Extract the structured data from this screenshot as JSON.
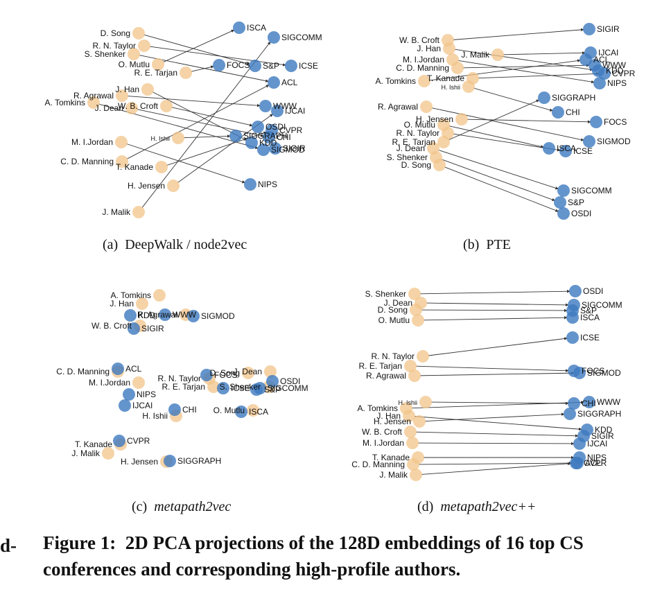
{
  "figure": {
    "margin_fragment": "d-",
    "caption_prefix": "Figure 1:",
    "caption_text": "2D PCA projections of the 128D embeddings of 16 top CS conferences and corresponding high-profile authors.",
    "colors": {
      "author": "#f2c48a",
      "conference": "#3d79bf",
      "overlap": "#1a2f8c",
      "edge": "#333333"
    }
  },
  "panels": [
    {
      "id": "a",
      "caption_label": "(a)",
      "caption_method": "DeepWalk / node2vec",
      "method_italic": false,
      "authors": [
        {
          "label": "D. Song",
          "x": 150,
          "y": 40
        },
        {
          "label": "R. N. Taylor",
          "x": 158,
          "y": 58
        },
        {
          "label": "S. Shenker",
          "x": 143,
          "y": 70
        },
        {
          "label": "O. Mutlu",
          "x": 178,
          "y": 85
        },
        {
          "label": "R. E. Tarjan",
          "x": 218,
          "y": 97
        },
        {
          "label": "J. Han",
          "x": 163,
          "y": 121
        },
        {
          "label": "R. Agrawal",
          "x": 126,
          "y": 130
        },
        {
          "label": "A. Tomkins",
          "x": 85,
          "y": 140
        },
        {
          "label": "J. Dean",
          "x": 140,
          "y": 148
        },
        {
          "label": "W. B. Croft",
          "x": 190,
          "y": 145
        },
        {
          "label": "H. Ishii",
          "x": 207,
          "y": 191,
          "small": true
        },
        {
          "label": "M. I.Jordan",
          "x": 125,
          "y": 197
        },
        {
          "label": "C. D. Manning",
          "x": 126,
          "y": 225
        },
        {
          "label": "T. Kanade",
          "x": 183,
          "y": 233
        },
        {
          "label": "H. Jensen",
          "x": 200,
          "y": 260
        },
        {
          "label": "J. Malik",
          "x": 150,
          "y": 298
        }
      ],
      "conferences": [
        {
          "label": "ISCA",
          "x": 295,
          "y": 32
        },
        {
          "label": "SIGCOMM",
          "x": 345,
          "y": 46
        },
        {
          "label": "FOCS",
          "x": 266,
          "y": 86
        },
        {
          "label": "S&P",
          "x": 318,
          "y": 87
        },
        {
          "label": "ICSE",
          "x": 370,
          "y": 87
        },
        {
          "label": "ACL",
          "x": 345,
          "y": 111
        },
        {
          "label": "WWW",
          "x": 333,
          "y": 145
        },
        {
          "label": "IJCAI",
          "x": 350,
          "y": 152
        },
        {
          "label": "OSDI",
          "x": 322,
          "y": 175
        },
        {
          "label": "CVPR",
          "x": 342,
          "y": 180
        },
        {
          "label": "SIGGRAPH",
          "x": 290,
          "y": 188
        },
        {
          "label": "CHI",
          "x": 338,
          "y": 190
        },
        {
          "label": "KDD",
          "x": 313,
          "y": 198
        },
        {
          "label": "SIGMOD",
          "x": 330,
          "y": 208
        },
        {
          "label": "SIGIR",
          "x": 347,
          "y": 206
        },
        {
          "label": "NIPS",
          "x": 311,
          "y": 258
        }
      ],
      "edges": [
        [
          0,
          3
        ],
        [
          1,
          4
        ],
        [
          2,
          5
        ],
        [
          3,
          0
        ],
        [
          4,
          2
        ],
        [
          5,
          12
        ],
        [
          6,
          6
        ],
        [
          7,
          13
        ],
        [
          8,
          11
        ],
        [
          9,
          8
        ],
        [
          10,
          10
        ],
        [
          11,
          15
        ],
        [
          12,
          5
        ],
        [
          13,
          9
        ],
        [
          14,
          7
        ],
        [
          15,
          1
        ]
      ]
    },
    {
      "id": "b",
      "caption_label": "(b)",
      "caption_method": "PTE",
      "method_italic": false,
      "authors": [
        {
          "label": "W. B. Croft",
          "x": 146,
          "y": 50
        },
        {
          "label": "J. Han",
          "x": 148,
          "y": 62
        },
        {
          "label": "J. Malik",
          "x": 218,
          "y": 71
        },
        {
          "label": "M. I.Jordan",
          "x": 153,
          "y": 78
        },
        {
          "label": "C. D. Manning",
          "x": 160,
          "y": 90
        },
        {
          "label": "A. Tomkins",
          "x": 112,
          "y": 109
        },
        {
          "label": "T. Kanade",
          "x": 182,
          "y": 105
        },
        {
          "label": "H. Ishii",
          "x": 176,
          "y": 117,
          "small": true
        },
        {
          "label": "R. Agrawal",
          "x": 115,
          "y": 146
        },
        {
          "label": "H. Jensen",
          "x": 166,
          "y": 164
        },
        {
          "label": "O. Mutlu",
          "x": 140,
          "y": 172
        },
        {
          "label": "R. N. Taylor",
          "x": 146,
          "y": 184
        },
        {
          "label": "R. E. Tarjan",
          "x": 140,
          "y": 197
        },
        {
          "label": "J. Dean",
          "x": 125,
          "y": 206
        },
        {
          "label": "S. Shenker",
          "x": 129,
          "y": 219
        },
        {
          "label": "D. Song",
          "x": 134,
          "y": 230
        }
      ],
      "conferences": [
        {
          "label": "SIGIR",
          "x": 350,
          "y": 34
        },
        {
          "label": "IJCAI",
          "x": 352,
          "y": 68
        },
        {
          "label": "ACL",
          "x": 345,
          "y": 78
        },
        {
          "label": "WWW",
          "x": 358,
          "y": 86
        },
        {
          "label": "KDD",
          "x": 363,
          "y": 94
        },
        {
          "label": "CVPR",
          "x": 372,
          "y": 98
        },
        {
          "label": "NIPS",
          "x": 365,
          "y": 112
        },
        {
          "label": "SIGGRAPH",
          "x": 285,
          "y": 133
        },
        {
          "label": "CHI",
          "x": 305,
          "y": 154
        },
        {
          "label": "FOCS",
          "x": 360,
          "y": 168
        },
        {
          "label": "SIGMOD",
          "x": 350,
          "y": 196
        },
        {
          "label": "ISCA",
          "x": 292,
          "y": 206
        },
        {
          "label": "ICSE",
          "x": 316,
          "y": 210
        },
        {
          "label": "SIGCOMM",
          "x": 313,
          "y": 267
        },
        {
          "label": "S&P",
          "x": 308,
          "y": 284
        },
        {
          "label": "OSDI",
          "x": 313,
          "y": 300
        }
      ],
      "edges": [
        [
          0,
          0
        ],
        [
          1,
          4
        ],
        [
          2,
          1
        ],
        [
          3,
          6
        ],
        [
          4,
          3
        ],
        [
          5,
          2
        ],
        [
          6,
          5
        ],
        [
          7,
          8
        ],
        [
          8,
          10
        ],
        [
          9,
          9
        ],
        [
          10,
          11
        ],
        [
          11,
          12
        ],
        [
          12,
          7
        ],
        [
          13,
          13
        ],
        [
          14,
          14
        ],
        [
          15,
          15
        ]
      ]
    },
    {
      "id": "c",
      "caption_label": "(c)",
      "caption_method": "metapath2vec",
      "method_italic": true,
      "authors": [
        {
          "label": "J. Han",
          "x": 155,
          "y": 40
        },
        {
          "label": "A. Tomkins",
          "x": 180,
          "y": 28
        },
        {
          "label": "R. Agrawal",
          "x": 218,
          "y": 56
        },
        {
          "label": "W. B. Croft",
          "x": 152,
          "y": 72
        },
        {
          "label": "M. I.Jordan",
          "x": 150,
          "y": 154
        },
        {
          "label": "C. D. Manning",
          "x": 120,
          "y": 138
        },
        {
          "label": "D. Song",
          "x": 308,
          "y": 140
        },
        {
          "label": "J. Dean",
          "x": 340,
          "y": 138
        },
        {
          "label": "S. Shenker",
          "x": 338,
          "y": 160
        },
        {
          "label": "R. N. Taylor",
          "x": 252,
          "y": 148
        },
        {
          "label": "R. E. Tarjan",
          "x": 258,
          "y": 160
        },
        {
          "label": "O. Mutlu",
          "x": 315,
          "y": 194
        },
        {
          "label": "H. Ishii",
          "x": 204,
          "y": 202
        },
        {
          "label": "T. Kanade",
          "x": 124,
          "y": 243
        },
        {
          "label": "J. Malik",
          "x": 106,
          "y": 256
        },
        {
          "label": "H. Jensen",
          "x": 190,
          "y": 268
        }
      ],
      "conferences": [
        {
          "label": "KDD",
          "x": 138,
          "y": 57
        },
        {
          "label": "WWW",
          "x": 188,
          "y": 56
        },
        {
          "label": "SIGMOD",
          "x": 229,
          "y": 58
        },
        {
          "label": "SIGIR",
          "x": 143,
          "y": 76
        },
        {
          "label": "ACL",
          "x": 120,
          "y": 134
        },
        {
          "label": "NIPS",
          "x": 136,
          "y": 171
        },
        {
          "label": "IJCAI",
          "x": 130,
          "y": 187
        },
        {
          "label": "FOCS",
          "x": 248,
          "y": 143
        },
        {
          "label": "ICSE",
          "x": 272,
          "y": 162
        },
        {
          "label": "S&P",
          "x": 320,
          "y": 164
        },
        {
          "label": "OSDI",
          "x": 343,
          "y": 152
        },
        {
          "label": "SIGCOMM",
          "x": 325,
          "y": 162
        },
        {
          "label": "CHI",
          "x": 202,
          "y": 193
        },
        {
          "label": "ISCA",
          "x": 298,
          "y": 196
        },
        {
          "label": "CVPR",
          "x": 122,
          "y": 238
        },
        {
          "label": "SIGGRAPH",
          "x": 195,
          "y": 267
        }
      ],
      "edges": []
    },
    {
      "id": "d",
      "caption_label": "(d)",
      "caption_method": "metapath2vec++",
      "method_italic": true,
      "authors": [
        {
          "label": "S. Shenker",
          "x": 98,
          "y": 26
        },
        {
          "label": "J. Dean",
          "x": 107,
          "y": 39
        },
        {
          "label": "D. Song",
          "x": 100,
          "y": 49
        },
        {
          "label": "O. Mutlu",
          "x": 103,
          "y": 64
        },
        {
          "label": "R. N. Taylor",
          "x": 110,
          "y": 116
        },
        {
          "label": "R. E. Tarjan",
          "x": 92,
          "y": 130
        },
        {
          "label": "R. Agrawal",
          "x": 98,
          "y": 144
        },
        {
          "label": "H. Ishii",
          "x": 114,
          "y": 182,
          "small": true
        },
        {
          "label": "A. Tomkins",
          "x": 86,
          "y": 191
        },
        {
          "label": "J. Han",
          "x": 90,
          "y": 202
        },
        {
          "label": "H. Jensen",
          "x": 105,
          "y": 210
        },
        {
          "label": "W. B. Croft",
          "x": 92,
          "y": 225
        },
        {
          "label": "M. I.Jordan",
          "x": 95,
          "y": 241
        },
        {
          "label": "T. Kanade",
          "x": 103,
          "y": 262
        },
        {
          "label": "C. D. Manning",
          "x": 96,
          "y": 272
        },
        {
          "label": "J. Malik",
          "x": 100,
          "y": 287
        }
      ],
      "conferences": [
        {
          "label": "OSDI",
          "x": 330,
          "y": 22
        },
        {
          "label": "SIGCOMM",
          "x": 328,
          "y": 42
        },
        {
          "label": "S&P",
          "x": 326,
          "y": 50
        },
        {
          "label": "ISCA",
          "x": 326,
          "y": 60
        },
        {
          "label": "ICSE",
          "x": 326,
          "y": 89
        },
        {
          "label": "FOCS",
          "x": 328,
          "y": 137
        },
        {
          "label": "SIGMOD",
          "x": 336,
          "y": 140
        },
        {
          "label": "CHI",
          "x": 328,
          "y": 184
        },
        {
          "label": "WWW",
          "x": 350,
          "y": 182
        },
        {
          "label": "SIGGRAPH",
          "x": 322,
          "y": 199
        },
        {
          "label": "KDD",
          "x": 347,
          "y": 222
        },
        {
          "label": "SIGIR",
          "x": 342,
          "y": 231
        },
        {
          "label": "IJCAI",
          "x": 336,
          "y": 242
        },
        {
          "label": "NIPS",
          "x": 336,
          "y": 262
        },
        {
          "label": "ACL",
          "x": 333,
          "y": 270
        },
        {
          "label": "CVPR",
          "x": 331,
          "y": 270
        }
      ],
      "edges": [
        [
          0,
          0
        ],
        [
          1,
          1
        ],
        [
          2,
          2
        ],
        [
          3,
          3
        ],
        [
          4,
          4
        ],
        [
          5,
          5
        ],
        [
          6,
          6
        ],
        [
          7,
          7
        ],
        [
          8,
          8
        ],
        [
          9,
          10
        ],
        [
          10,
          9
        ],
        [
          11,
          11
        ],
        [
          12,
          12
        ],
        [
          13,
          13
        ],
        [
          14,
          14
        ],
        [
          15,
          15
        ]
      ]
    }
  ]
}
